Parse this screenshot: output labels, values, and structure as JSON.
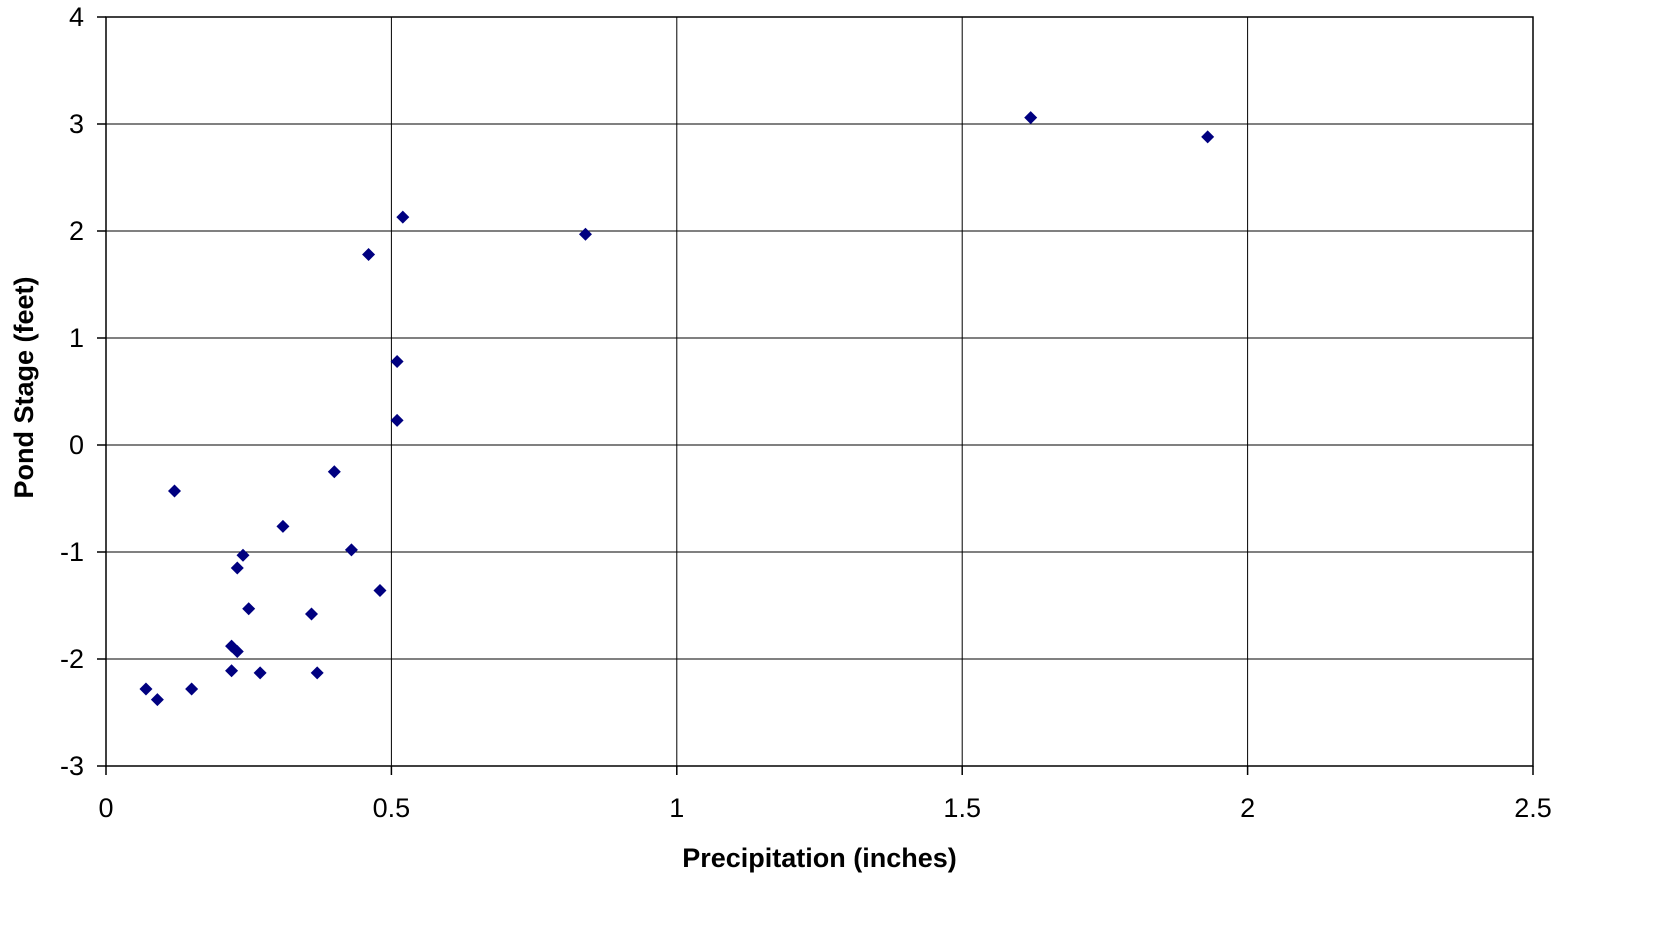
{
  "chart_data": {
    "type": "scatter",
    "title": "",
    "xlabel": "Precipitation (inches)",
    "ylabel": "Pond Stage (feet)",
    "xlim": [
      0,
      2.5
    ],
    "ylim": [
      -3,
      4
    ],
    "x_ticks": [
      0,
      0.5,
      1,
      1.5,
      2,
      2.5
    ],
    "x_tick_labels": [
      "0",
      "0.5",
      "1",
      "1.5",
      "2",
      "2.5"
    ],
    "y_ticks": [
      -3,
      -2,
      -1,
      0,
      1,
      2,
      3,
      4
    ],
    "y_tick_labels": [
      "-3",
      "-2",
      "-1",
      "0",
      "1",
      "2",
      "3",
      "4"
    ],
    "grid": true,
    "legend": "none",
    "marker": "diamond",
    "marker_color": "#000080",
    "series": [
      {
        "points": [
          [
            0.07,
            -2.28
          ],
          [
            0.09,
            -2.38
          ],
          [
            0.12,
            -0.43
          ],
          [
            0.15,
            -2.28
          ],
          [
            0.22,
            -1.88
          ],
          [
            0.22,
            -2.11
          ],
          [
            0.23,
            -1.15
          ],
          [
            0.23,
            -1.93
          ],
          [
            0.24,
            -1.03
          ],
          [
            0.25,
            -1.53
          ],
          [
            0.27,
            -2.13
          ],
          [
            0.31,
            -0.76
          ],
          [
            0.36,
            -1.58
          ],
          [
            0.37,
            -2.13
          ],
          [
            0.4,
            -0.25
          ],
          [
            0.43,
            -0.98
          ],
          [
            0.46,
            1.78
          ],
          [
            0.48,
            -1.36
          ],
          [
            0.51,
            0.78
          ],
          [
            0.51,
            0.23
          ],
          [
            0.52,
            2.13
          ],
          [
            0.84,
            1.97
          ],
          [
            1.62,
            3.06
          ],
          [
            1.93,
            2.88
          ]
        ]
      }
    ]
  }
}
